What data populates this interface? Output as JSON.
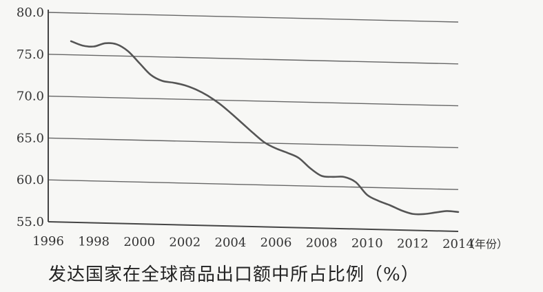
{
  "chart_data": {
    "type": "line",
    "title": "",
    "xlabel": "",
    "ylabel": "",
    "caption": "发达国家在全球商品出口额中所占比例（%）",
    "x_unit_label": "（年份）",
    "x_ticks": [
      "1996",
      "1998",
      "2000",
      "2002",
      "2004",
      "2006",
      "2008",
      "2010",
      "2012",
      "2014"
    ],
    "y_ticks": [
      "55.0",
      "60.0",
      "65.0",
      "70.0",
      "75.0",
      "80.0"
    ],
    "xlim": [
      1996,
      2014
    ],
    "ylim": [
      55,
      80
    ],
    "grid": true,
    "series": [
      {
        "x": [
          1997,
          1997.5,
          1998,
          1998.5,
          1999,
          1999.5,
          2000,
          2000.5,
          2001,
          2001.5,
          2002,
          2002.5,
          2003,
          2003.5,
          2004,
          2004.5,
          2005,
          2005.5,
          2006,
          2006.5,
          2007,
          2007.5,
          2008,
          2008.5,
          2009,
          2009.5,
          2010,
          2010.5,
          2011,
          2011.5,
          2012,
          2012.5,
          2013,
          2013.5,
          2014
        ],
        "values": [
          76.6,
          76.1,
          76.0,
          76.4,
          76.3,
          75.5,
          74.1,
          72.7,
          72.0,
          71.8,
          71.5,
          71.0,
          70.3,
          69.4,
          68.3,
          67.1,
          65.9,
          64.8,
          64.1,
          63.6,
          63.0,
          61.8,
          60.9,
          60.8,
          60.8,
          60.2,
          58.7,
          58.0,
          57.5,
          56.9,
          56.5,
          56.5,
          56.7,
          56.9,
          56.8
        ]
      }
    ],
    "line_color": "#555555",
    "grid_color": "#666666"
  }
}
